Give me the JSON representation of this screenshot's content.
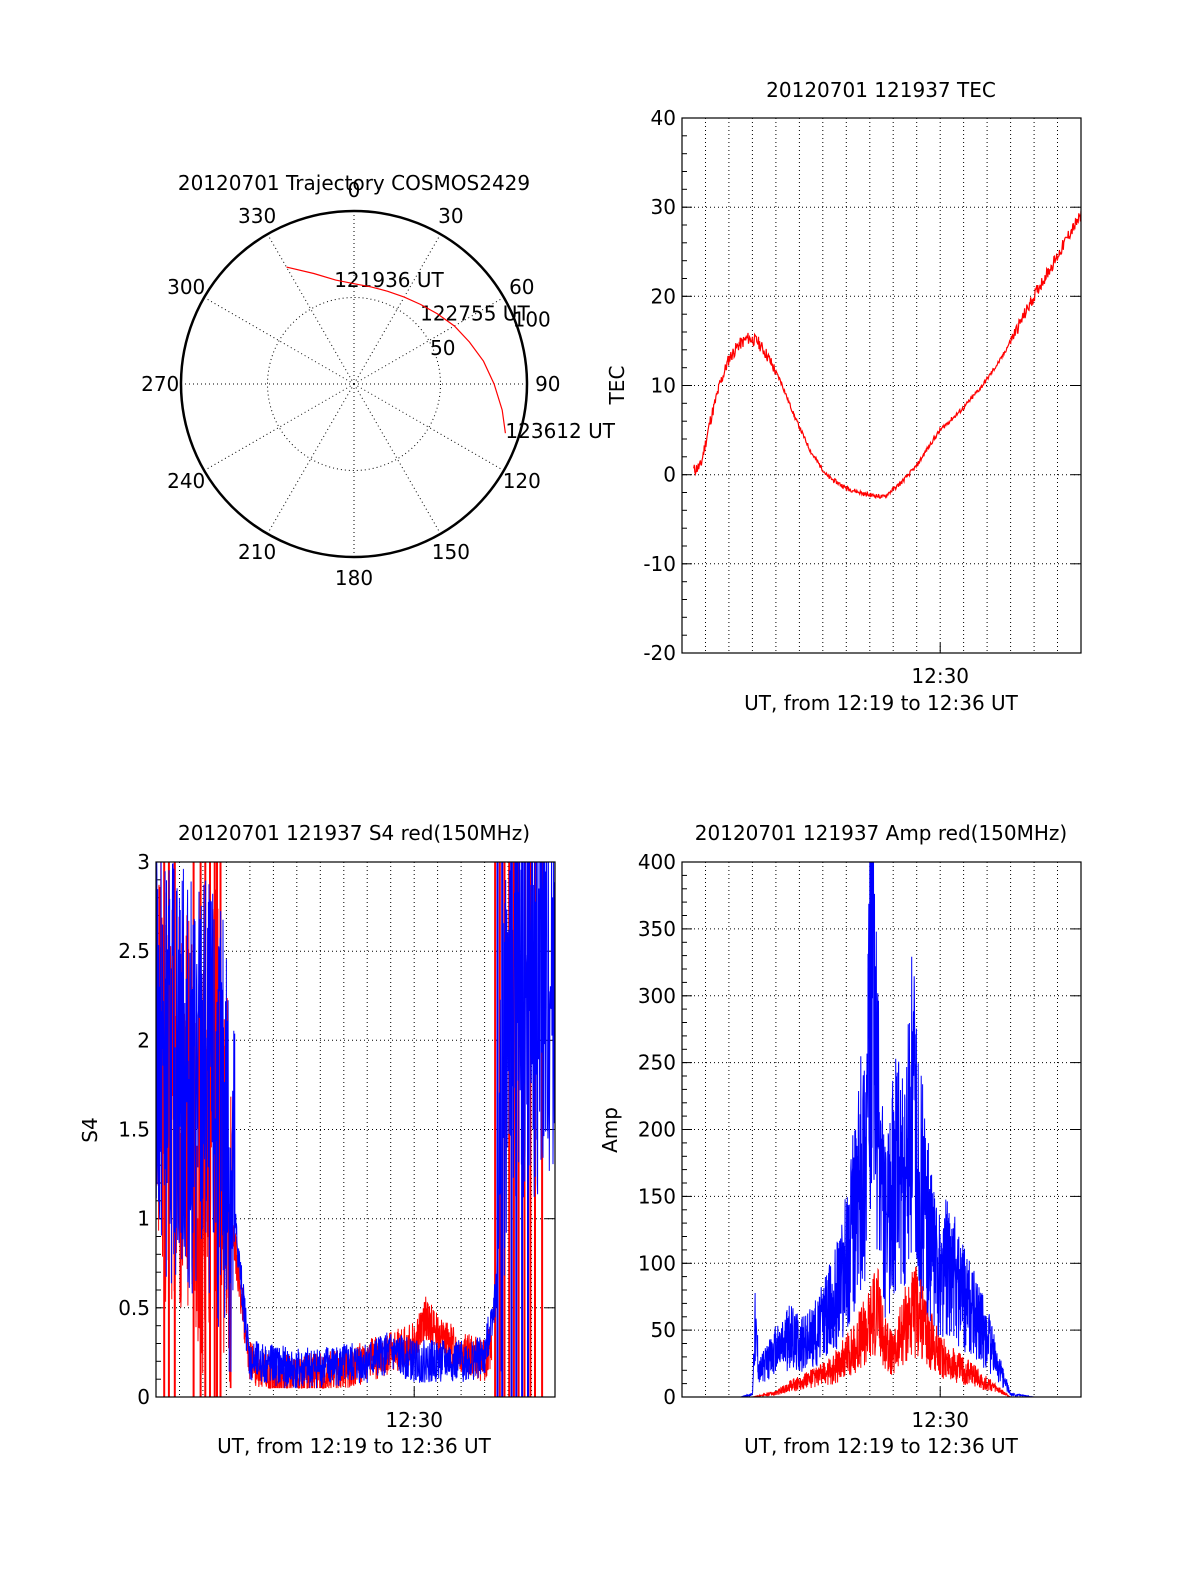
{
  "colors": {
    "red": "#ff0000",
    "blue": "#0000ff",
    "axis": "#000000"
  },
  "chart_data": [
    {
      "type": "polar",
      "title": "20120701 Trajectory COSMOS2429",
      "azimuth_labels": [
        "0",
        "30",
        "60",
        "90",
        "120",
        "150",
        "180",
        "210",
        "240",
        "270",
        "300",
        "330"
      ],
      "radius_labels": [
        "50",
        "100"
      ],
      "radius_label_values": [
        50,
        100
      ],
      "radius_max": 100,
      "inner_ring_values": [
        50
      ],
      "trajectory_label_points": [
        {
          "label": "121936 UT",
          "azimuth": -11,
          "radius": 60
        },
        {
          "label": "122755 UT",
          "azimuth": 44,
          "radius": 55
        },
        {
          "label": "123612 UT",
          "azimuth": 108,
          "radius": 92
        }
      ],
      "trajectory": {
        "color": "red",
        "points": [
          {
            "azimuth": -30,
            "radius": 78
          },
          {
            "azimuth": -20,
            "radius": 68
          },
          {
            "azimuth": -10,
            "radius": 61
          },
          {
            "azimuth": 0,
            "radius": 58
          },
          {
            "azimuth": 10,
            "radius": 57
          },
          {
            "azimuth": 20,
            "radius": 57
          },
          {
            "azimuth": 30,
            "radius": 58
          },
          {
            "azimuth": 40,
            "radius": 60
          },
          {
            "azimuth": 50,
            "radius": 63
          },
          {
            "azimuth": 60,
            "radius": 67
          },
          {
            "azimuth": 70,
            "radius": 71
          },
          {
            "azimuth": 80,
            "radius": 76
          },
          {
            "azimuth": 90,
            "radius": 81
          },
          {
            "azimuth": 100,
            "radius": 87
          },
          {
            "azimuth": 108,
            "radius": 92
          }
        ]
      }
    },
    {
      "type": "line",
      "title": "20120701 121937 TEC",
      "xlabel": "UT, from 12:19 to 12:36 UT",
      "ylabel": "TEC",
      "xlim": [
        0,
        17
      ],
      "ylim": [
        -20,
        40
      ],
      "yticks": [
        -20,
        -10,
        0,
        10,
        20,
        30,
        40
      ],
      "xtick_label": {
        "x": 11,
        "label": "12:30"
      },
      "grid": true,
      "series": [
        {
          "color": "red",
          "x": [
            0.5,
            0.8,
            1.2,
            1.6,
            2.0,
            2.4,
            2.8,
            3.2,
            3.6,
            4.2,
            4.8,
            5.5,
            6.2,
            7.0,
            7.8,
            8.6,
            9.3,
            10.0,
            10.6,
            11.0,
            11.4,
            12.0,
            12.8,
            13.6,
            14.4,
            15.2,
            16.0,
            16.5,
            17.0
          ],
          "y": [
            0.5,
            1.0,
            6.0,
            10.0,
            13.0,
            14.5,
            15.3,
            15.0,
            13.5,
            10.5,
            6.5,
            2.5,
            -0.2,
            -1.5,
            -2.2,
            -2.5,
            -1.0,
            1.0,
            3.5,
            5.0,
            6.0,
            7.5,
            10.0,
            13.0,
            17.0,
            21.0,
            24.5,
            27.0,
            29.0
          ]
        }
      ]
    },
    {
      "type": "line",
      "title": "20120701 121937 S4 red(150MHz)",
      "xlabel": "UT, from 12:19 to 12:36 UT",
      "ylabel": "S4",
      "xlim": [
        0,
        17
      ],
      "ylim": [
        0,
        3
      ],
      "yticks": [
        0,
        0.5,
        1,
        1.5,
        2,
        2.5,
        3
      ],
      "xtick_label": {
        "x": 11,
        "label": "12:30"
      },
      "grid": true,
      "series": [
        {
          "color": "red",
          "x": [
            0.0,
            0.5,
            1.0,
            1.5,
            2.0,
            2.5,
            3.0,
            3.5,
            4.0,
            5.0,
            6.0,
            7.0,
            8.0,
            9.0,
            10.0,
            11.0,
            11.5,
            12.0,
            13.0,
            14.0,
            14.3
          ],
          "y": [
            2.2,
            1.6,
            1.5,
            1.7,
            1.3,
            1.8,
            1.2,
            0.7,
            0.2,
            0.12,
            0.12,
            0.13,
            0.15,
            0.2,
            0.25,
            0.3,
            0.45,
            0.35,
            0.25,
            0.2,
            0.3
          ]
        },
        {
          "color": "blue",
          "x": [
            0.0,
            0.5,
            1.0,
            1.5,
            2.0,
            2.5,
            3.0,
            3.5,
            4.0,
            5.0,
            6.0,
            7.0,
            8.0,
            9.0,
            10.0,
            11.0,
            12.0,
            13.0,
            14.0,
            14.5,
            15.0,
            16.0,
            17.0
          ],
          "y": [
            2.0,
            1.8,
            1.9,
            1.7,
            1.8,
            1.6,
            1.5,
            0.8,
            0.2,
            0.18,
            0.15,
            0.17,
            0.18,
            0.2,
            0.25,
            0.2,
            0.2,
            0.2,
            0.22,
            0.6,
            2.3,
            2.2,
            2.4
          ]
        }
      ],
      "red_spike_x": [
        0.35,
        0.55,
        0.8,
        1.6,
        1.9,
        2.1,
        2.3,
        2.5,
        2.6,
        2.75,
        14.45,
        14.65,
        14.85,
        15.05,
        15.25,
        15.45,
        15.7,
        15.95,
        16.15,
        16.45
      ],
      "blue_spike_x": [
        14.55,
        14.75,
        15.15,
        15.35,
        15.6,
        15.85
      ]
    },
    {
      "type": "line",
      "title": "20120701 121937 Amp red(150MHz)",
      "xlabel": "UT, from 12:19 to 12:36 UT",
      "ylabel": "Amp",
      "xlim": [
        0,
        17
      ],
      "ylim": [
        0,
        400
      ],
      "yticks": [
        0,
        50,
        100,
        150,
        200,
        250,
        300,
        350,
        400
      ],
      "xtick_label": {
        "x": 11,
        "label": "12:30"
      },
      "grid": true,
      "series": [
        {
          "color": "blue",
          "x": [
            0.0,
            2.5,
            3.0,
            3.1,
            3.3,
            3.6,
            4.0,
            4.6,
            5.2,
            5.8,
            6.4,
            7.0,
            7.4,
            7.8,
            8.1,
            8.4,
            8.7,
            9.1,
            9.5,
            9.8,
            10.2,
            10.6,
            11.0,
            11.4,
            11.8,
            12.2,
            12.6,
            13.0,
            13.4,
            13.8,
            14.0,
            15.0,
            17.0
          ],
          "y": [
            0,
            0,
            2,
            55,
            20,
            25,
            35,
            45,
            40,
            50,
            70,
            100,
            140,
            190,
            310,
            180,
            120,
            170,
            150,
            220,
            160,
            110,
            90,
            100,
            80,
            70,
            55,
            45,
            25,
            10,
            2,
            0,
            0
          ]
        },
        {
          "color": "red",
          "x": [
            0.0,
            3.0,
            4.0,
            4.6,
            5.2,
            5.8,
            6.4,
            7.0,
            7.5,
            8.0,
            8.3,
            8.6,
            9.0,
            9.5,
            10.0,
            10.5,
            11.0,
            11.5,
            12.0,
            12.5,
            13.0,
            13.5,
            14.0,
            17.0
          ],
          "y": [
            0,
            0,
            3,
            8,
            12,
            15,
            20,
            30,
            40,
            55,
            70,
            40,
            30,
            55,
            65,
            45,
            30,
            25,
            20,
            15,
            10,
            5,
            0,
            0
          ]
        }
      ]
    }
  ]
}
